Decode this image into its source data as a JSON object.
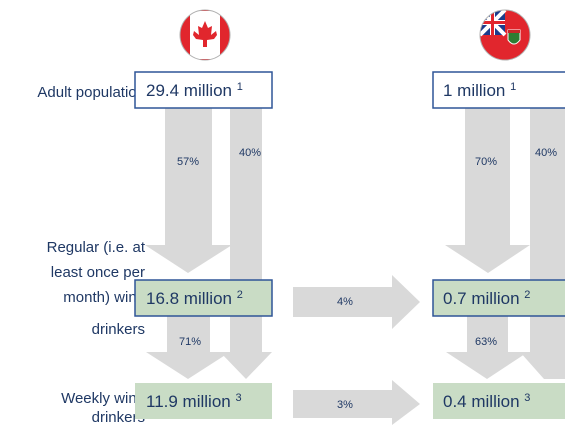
{
  "rows": [
    {
      "lines": [
        "Adult population"
      ]
    },
    {
      "lines": [
        "Regular (i.e. at",
        "least once per",
        "month) wine",
        "drinkers"
      ]
    },
    {
      "lines": [
        "Weekly wine",
        "drinkers"
      ]
    }
  ],
  "canada": {
    "boxes": [
      {
        "value": "29.4 million",
        "note": "1"
      },
      {
        "value": "16.8 million",
        "note": "2"
      },
      {
        "value": "11.9 million",
        "note": "3"
      }
    ],
    "arrows": [
      "57%",
      "40%",
      "71%"
    ]
  },
  "manitoba": {
    "boxes": [
      {
        "value": "1 million",
        "note": "1"
      },
      {
        "value": "0.7 million",
        "note": "2"
      },
      {
        "value": "0.4 million",
        "note": "3"
      }
    ],
    "arrows": [
      "70%",
      "40%",
      "63%"
    ]
  },
  "between": [
    "4%",
    "3%"
  ]
}
